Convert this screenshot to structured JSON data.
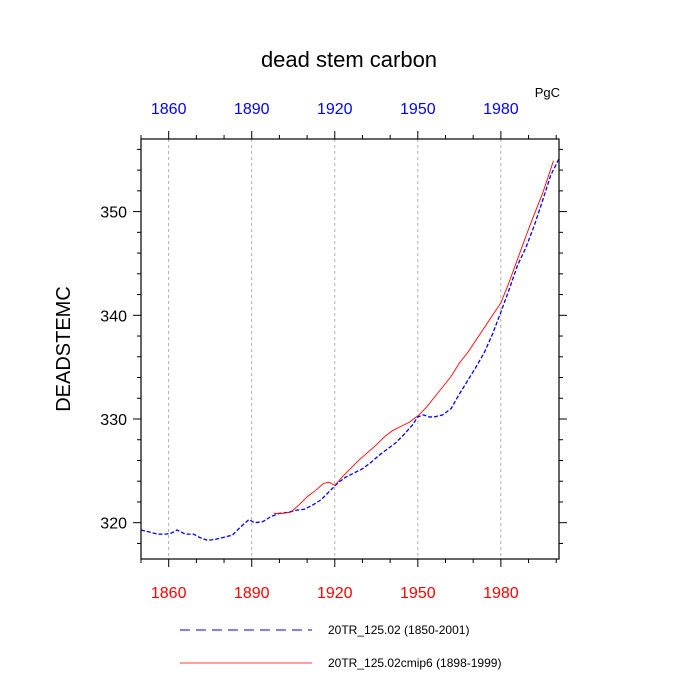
{
  "chart_data": {
    "type": "line",
    "title": "dead stem carbon",
    "ylabel": "DEADSTEMC",
    "units": "PgC",
    "xlim": [
      1850,
      2001
    ],
    "ylim": [
      316.5,
      357
    ],
    "xticks": [
      1860,
      1890,
      1920,
      1950,
      1980
    ],
    "yticks": [
      320,
      330,
      340,
      350
    ],
    "grid_x": true,
    "colors": {
      "top_ticks": "#0000ff",
      "bottom_ticks": "#ff0000"
    },
    "legend": {
      "placement": "bottom"
    },
    "series": [
      {
        "name": "20TR_125.02 (1850-2001)",
        "color": "#0000ff",
        "style": "dashed",
        "points": [
          [
            1850,
            319.3
          ],
          [
            1853,
            319.1
          ],
          [
            1856,
            318.9
          ],
          [
            1859,
            318.9
          ],
          [
            1861,
            319.0
          ],
          [
            1863,
            319.3
          ],
          [
            1866,
            318.9
          ],
          [
            1869,
            318.9
          ],
          [
            1871,
            318.6
          ],
          [
            1874,
            318.3
          ],
          [
            1877,
            318.4
          ],
          [
            1880,
            318.6
          ],
          [
            1883,
            318.8
          ],
          [
            1886,
            319.6
          ],
          [
            1889,
            320.3
          ],
          [
            1891,
            320.0
          ],
          [
            1894,
            320.1
          ],
          [
            1897,
            320.6
          ],
          [
            1900,
            320.9
          ],
          [
            1903,
            321.0
          ],
          [
            1906,
            321.2
          ],
          [
            1909,
            321.3
          ],
          [
            1912,
            321.7
          ],
          [
            1915,
            322.2
          ],
          [
            1918,
            323.0
          ],
          [
            1921,
            323.8
          ],
          [
            1924,
            324.4
          ],
          [
            1927,
            324.8
          ],
          [
            1930,
            325.2
          ],
          [
            1933,
            325.8
          ],
          [
            1936,
            326.5
          ],
          [
            1939,
            327.1
          ],
          [
            1942,
            327.7
          ],
          [
            1945,
            328.5
          ],
          [
            1948,
            329.4
          ],
          [
            1950,
            330.2
          ],
          [
            1952,
            330.4
          ],
          [
            1954,
            330.2
          ],
          [
            1956,
            330.2
          ],
          [
            1959,
            330.4
          ],
          [
            1962,
            331.0
          ],
          [
            1965,
            332.4
          ],
          [
            1968,
            333.7
          ],
          [
            1971,
            335.0
          ],
          [
            1974,
            336.4
          ],
          [
            1977,
            338.2
          ],
          [
            1980,
            340.3
          ],
          [
            1983,
            342.5
          ],
          [
            1986,
            344.8
          ],
          [
            1989,
            346.5
          ],
          [
            1992,
            348.6
          ],
          [
            1995,
            351.0
          ],
          [
            1998,
            353.5
          ],
          [
            2001,
            355.1
          ]
        ]
      },
      {
        "name": "20TR_125.02cmip6 (1898-1999)",
        "color": "#ff0000",
        "style": "solid",
        "points": [
          [
            1898,
            320.9
          ],
          [
            1901,
            320.9
          ],
          [
            1904,
            321.0
          ],
          [
            1907,
            321.7
          ],
          [
            1910,
            322.5
          ],
          [
            1913,
            323.1
          ],
          [
            1916,
            323.8
          ],
          [
            1918,
            323.9
          ],
          [
            1920,
            323.6
          ],
          [
            1923,
            324.5
          ],
          [
            1926,
            325.3
          ],
          [
            1929,
            326.1
          ],
          [
            1932,
            326.8
          ],
          [
            1935,
            327.5
          ],
          [
            1938,
            328.3
          ],
          [
            1941,
            328.9
          ],
          [
            1944,
            329.3
          ],
          [
            1947,
            329.7
          ],
          [
            1950,
            330.3
          ],
          [
            1953,
            331.1
          ],
          [
            1956,
            332.1
          ],
          [
            1959,
            333.1
          ],
          [
            1962,
            334.1
          ],
          [
            1965,
            335.4
          ],
          [
            1968,
            336.4
          ],
          [
            1971,
            337.6
          ],
          [
            1974,
            338.8
          ],
          [
            1977,
            340.0
          ],
          [
            1980,
            341.2
          ],
          [
            1983,
            343.2
          ],
          [
            1986,
            345.4
          ],
          [
            1989,
            347.6
          ],
          [
            1992,
            349.7
          ],
          [
            1995,
            351.7
          ],
          [
            1999,
            354.9
          ]
        ]
      }
    ]
  }
}
